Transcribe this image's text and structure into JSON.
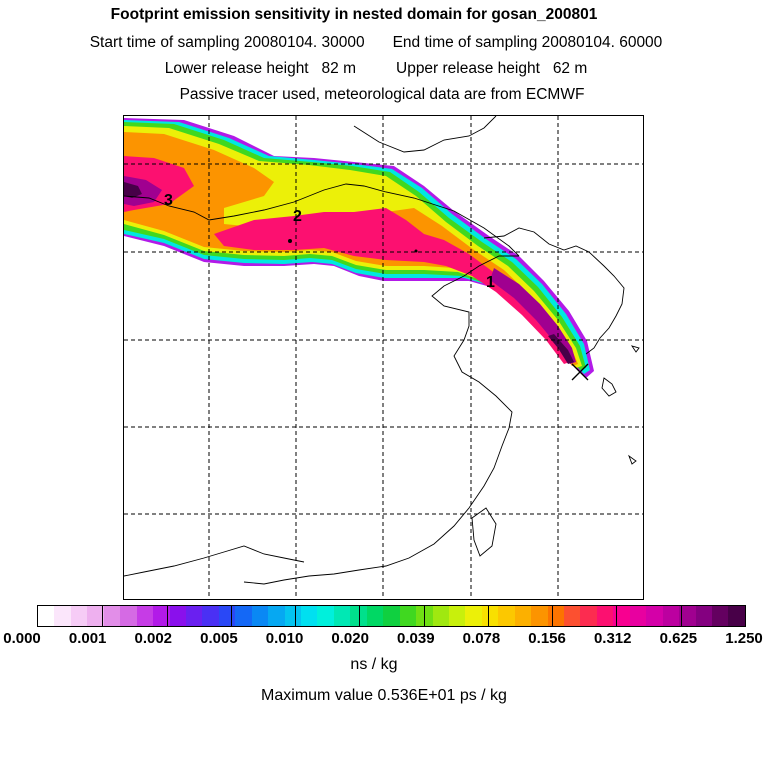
{
  "title": {
    "line1": "Footprint emission sensitivity in nested domain for gosan_200801",
    "start": "Start time of sampling 20080104. 30000",
    "end": "End time of sampling 20080104. 60000",
    "lower": "Lower release height   82 m",
    "upper": "Upper release height   62 m",
    "line4": "Passive tracer used, meteorological data are from ECMWF"
  },
  "map": {
    "labels": [
      {
        "text": "1"
      },
      {
        "text": "2"
      },
      {
        "text": "3"
      }
    ],
    "receptor_marker": "x-marker",
    "contour_levels": [
      "low",
      "medium",
      "high",
      "very-high",
      "max"
    ]
  },
  "colorbar": {
    "colors": [
      "#ffffff",
      "#fbe6fb",
      "#f6ccf6",
      "#eeb0ef",
      "#e28ee8",
      "#d56ae4",
      "#c63ce6",
      "#b21ae8",
      "#8a10ec",
      "#6a20f0",
      "#4a30f4",
      "#2a48f6",
      "#1468f6",
      "#0a88f4",
      "#06a8f2",
      "#04c4f0",
      "#00e0f0",
      "#00f0dc",
      "#00e8b4",
      "#00e08c",
      "#00d864",
      "#10d040",
      "#40d820",
      "#70e014",
      "#a0e810",
      "#c8f00c",
      "#ecf008",
      "#f8e000",
      "#fcc800",
      "#fcb000",
      "#fc9400",
      "#fc7400",
      "#fc5030",
      "#fc2c50",
      "#fc1070",
      "#f80090",
      "#e800a0",
      "#d400a8",
      "#bc00a0",
      "#a00090",
      "#840080",
      "#640060",
      "#480048"
    ],
    "ticks": [
      "0.000",
      "0.001",
      "0.002",
      "0.005",
      "0.010",
      "0.020",
      "0.039",
      "0.078",
      "0.156",
      "0.312",
      "0.625",
      "1.250"
    ],
    "unit": "ns / kg"
  },
  "max_value": "Maximum value  0.536E+01 ps / kg"
}
